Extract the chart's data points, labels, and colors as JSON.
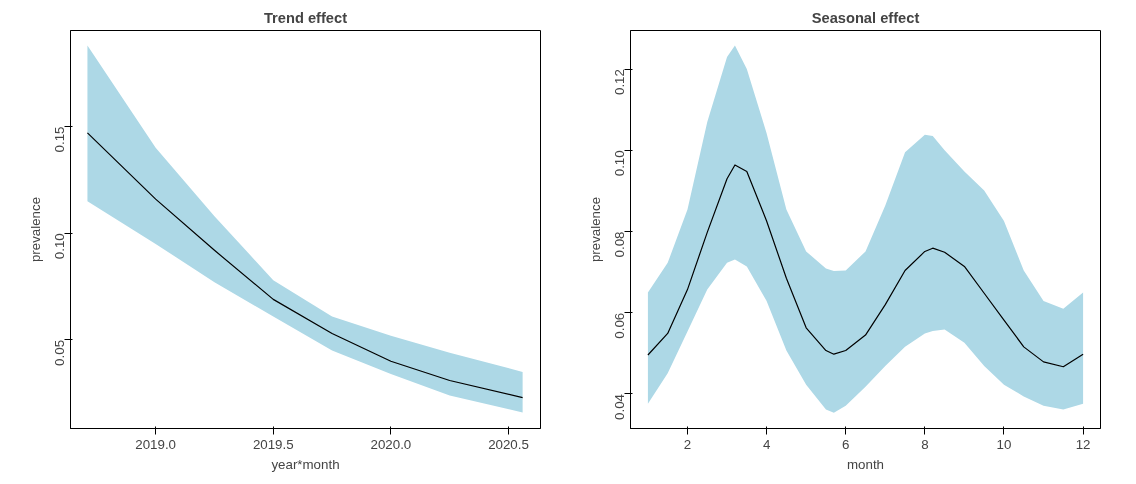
{
  "chart_data": [
    {
      "type": "line",
      "title": "Trend effect",
      "xlabel": "year*month",
      "ylabel": "prevalence",
      "xlim": [
        2018.638,
        2020.636
      ],
      "ylim": [
        0.0085,
        0.195
      ],
      "xticks": [
        {
          "value": 2019,
          "label": "2019.0"
        },
        2019.5,
        {
          "value": 2020,
          "label": "2020.0"
        },
        2020.5
      ],
      "yticks": [
        0.05,
        {
          "value": 0.1,
          "label": "0.10"
        },
        0.15
      ],
      "series": [
        {
          "color": "#000000",
          "x": [
            2018.71,
            2019.0,
            2019.25,
            2019.5,
            2019.75,
            2020.0,
            2020.25,
            2020.56
          ],
          "values": [
            0.147,
            0.116,
            0.092,
            0.069,
            0.053,
            0.04,
            0.031,
            0.023
          ],
          "lower": [
            0.115,
            0.095,
            0.077,
            0.061,
            0.045,
            0.034,
            0.024,
            0.016
          ],
          "upper": [
            0.188,
            0.14,
            0.108,
            0.078,
            0.061,
            0.052,
            0.044,
            0.035
          ]
        }
      ]
    },
    {
      "type": "line",
      "title": "Seasonal effect",
      "xlabel": "month",
      "ylabel": "prevalence",
      "xlim": [
        0.56,
        12.44
      ],
      "ylim": [
        0.0315,
        0.1295
      ],
      "xticks": [
        2,
        4,
        6,
        8,
        10,
        12
      ],
      "yticks": [
        0.04,
        0.06,
        0.08,
        {
          "value": 0.1,
          "label": "0.10"
        },
        0.12
      ],
      "series": [
        {
          "color": "#000000",
          "x": [
            1,
            1.5,
            2,
            2.5,
            3,
            3.2,
            3.5,
            4,
            4.5,
            5,
            5.5,
            5.7,
            6,
            6.5,
            7,
            7.5,
            8,
            8.2,
            8.5,
            9,
            9.5,
            10,
            10.5,
            11,
            11.5,
            12
          ],
          "values": [
            0.0496,
            0.0549,
            0.0657,
            0.0798,
            0.093,
            0.0964,
            0.0948,
            0.0826,
            0.0685,
            0.0563,
            0.0507,
            0.0498,
            0.0507,
            0.0545,
            0.062,
            0.0704,
            0.0751,
            0.0759,
            0.0749,
            0.0714,
            0.0648,
            0.0582,
            0.0516,
            0.0479,
            0.0467,
            0.0498
          ],
          "lower": [
            0.0376,
            0.0451,
            0.0554,
            0.0657,
            0.0723,
            0.0731,
            0.0714,
            0.0629,
            0.0507,
            0.0423,
            0.0362,
            0.0354,
            0.0371,
            0.0418,
            0.0469,
            0.0516,
            0.0549,
            0.0555,
            0.0559,
            0.0526,
            0.0469,
            0.0423,
            0.0394,
            0.0371,
            0.0362,
            0.0376
          ],
          "upper": [
            0.065,
            0.0723,
            0.0854,
            0.107,
            0.123,
            0.1258,
            0.12,
            0.1042,
            0.0854,
            0.0751,
            0.0709,
            0.0703,
            0.0704,
            0.0751,
            0.0864,
            0.0995,
            0.1038,
            0.1035,
            0.1,
            0.0948,
            0.0901,
            0.0826,
            0.0704,
            0.0629,
            0.061,
            0.065
          ]
        }
      ]
    }
  ]
}
